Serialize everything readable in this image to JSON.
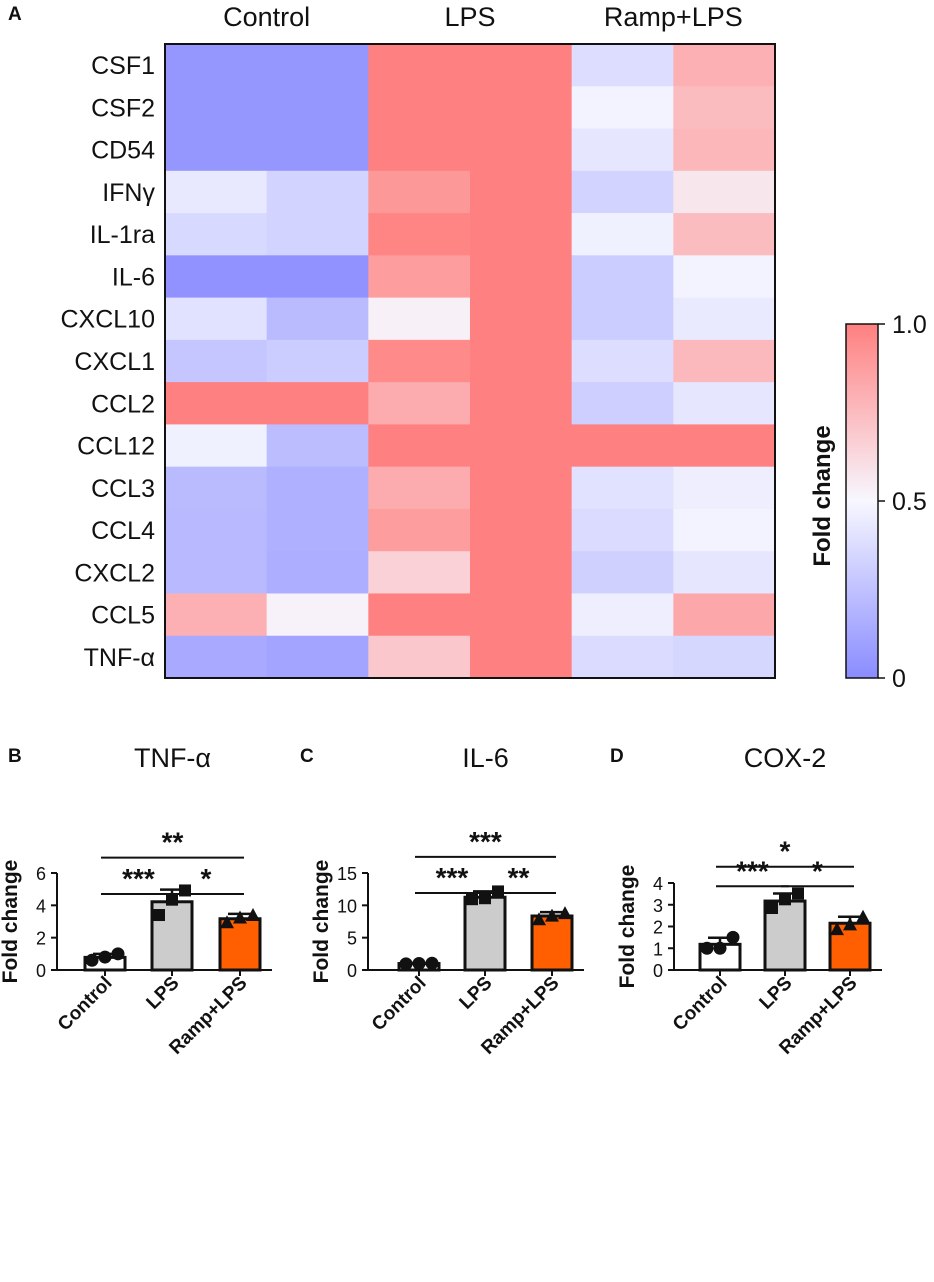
{
  "chart_data": [
    {
      "panel": "A",
      "type": "heatmap",
      "groups": [
        "Control",
        "LPS",
        "Ramp+LPS"
      ],
      "columns_per_group": 2,
      "rows": [
        "CSF1",
        "CSF2",
        "CD54",
        "IFNγ",
        "IL-1ra",
        "IL-6",
        "CXCL10",
        "CXCL1",
        "CCL2",
        "CCL12",
        "CCL3",
        "CCL4",
        "CXCL2",
        "CCL5",
        "TNF-α"
      ],
      "values": [
        [
          0.05,
          0.05,
          1.0,
          1.0,
          0.38,
          0.8
        ],
        [
          0.05,
          0.05,
          1.0,
          1.0,
          0.48,
          0.75
        ],
        [
          0.05,
          0.05,
          1.0,
          1.0,
          0.42,
          0.77
        ],
        [
          0.43,
          0.33,
          0.9,
          1.0,
          0.33,
          0.57
        ],
        [
          0.36,
          0.33,
          0.98,
          1.0,
          0.47,
          0.75
        ],
        [
          0.03,
          0.03,
          0.88,
          1.0,
          0.3,
          0.48
        ],
        [
          0.4,
          0.22,
          0.53,
          1.0,
          0.3,
          0.44
        ],
        [
          0.27,
          0.3,
          0.96,
          1.0,
          0.38,
          0.76
        ],
        [
          1.0,
          1.0,
          0.82,
          1.0,
          0.31,
          0.42
        ],
        [
          0.47,
          0.23,
          1.0,
          1.0,
          1.0,
          1.0
        ],
        [
          0.22,
          0.17,
          0.82,
          1.0,
          0.4,
          0.46
        ],
        [
          0.21,
          0.17,
          0.88,
          1.0,
          0.37,
          0.48
        ],
        [
          0.21,
          0.16,
          0.66,
          1.0,
          0.32,
          0.42
        ],
        [
          0.8,
          0.52,
          1.0,
          1.0,
          0.46,
          0.83
        ],
        [
          0.14,
          0.11,
          0.7,
          1.0,
          0.37,
          0.35
        ]
      ],
      "colorbar": {
        "title": "Fold change",
        "ticks": [
          "0",
          "0.5",
          "1.0"
        ],
        "range": [
          0,
          1
        ],
        "color_low": "#8a8cff",
        "color_mid": "#f7f7ff",
        "color_high": "#ff8080"
      }
    },
    {
      "panel": "B",
      "type": "bar",
      "title": "TNF-α",
      "ylabel": "Fold change",
      "ylim": [
        0,
        6
      ],
      "yticks": [
        "0",
        "2",
        "4",
        "6"
      ],
      "categories": [
        "Control",
        "LPS",
        "Ramp+LPS"
      ],
      "values": [
        0.78,
        4.22,
        3.17
      ],
      "errors": [
        0.22,
        0.75,
        0.3
      ],
      "points": [
        [
          0.6,
          0.8,
          1.0
        ],
        [
          3.4,
          4.35,
          4.92
        ],
        [
          2.95,
          3.25,
          3.4
        ]
      ],
      "bar_colors": [
        "#ffffff",
        "#cccccc",
        "#ff5f00"
      ],
      "markers": [
        "circle",
        "square",
        "triangle"
      ],
      "significance": [
        {
          "from": 1,
          "to": 2,
          "label": "***",
          "level": 4.7
        },
        {
          "from": 2,
          "to": 3,
          "label": "*",
          "level": 4.7
        },
        {
          "from": 1,
          "to": 3,
          "label": "**",
          "level": 6.95
        }
      ]
    },
    {
      "panel": "C",
      "type": "bar",
      "title": "IL-6",
      "ylabel": "Fold change",
      "ylim": [
        0,
        15
      ],
      "yticks": [
        "0",
        "5",
        "10",
        "15"
      ],
      "categories": [
        "Control",
        "LPS",
        "Ramp+LPS"
      ],
      "values": [
        1.0,
        11.25,
        8.35
      ],
      "errors": [
        0.08,
        0.9,
        0.6
      ],
      "points": [
        [
          0.95,
          1.0,
          1.05
        ],
        [
          10.95,
          11.1,
          12.15
        ],
        [
          7.85,
          8.4,
          8.8
        ]
      ],
      "bar_colors": [
        "#ffffff",
        "#cccccc",
        "#ff5f00"
      ],
      "markers": [
        "circle",
        "square",
        "triangle"
      ],
      "significance": [
        {
          "from": 1,
          "to": 2,
          "label": "***",
          "level": 11.9
        },
        {
          "from": 2,
          "to": 3,
          "label": "**",
          "level": 11.9
        },
        {
          "from": 1,
          "to": 3,
          "label": "***",
          "level": 17.5
        }
      ]
    },
    {
      "panel": "D",
      "type": "bar",
      "title": "COX-2",
      "ylabel": "Fold change",
      "ylim": [
        0,
        4
      ],
      "yticks": [
        "0",
        "1",
        "2",
        "3",
        "4"
      ],
      "categories": [
        "Control",
        "LPS",
        "Ramp+LPS"
      ],
      "values": [
        1.18,
        3.17,
        2.15
      ],
      "errors": [
        0.3,
        0.35,
        0.3
      ],
      "points": [
        [
          1.0,
          1.0,
          1.5
        ],
        [
          2.85,
          3.25,
          3.52
        ],
        [
          1.88,
          2.1,
          2.45
        ]
      ],
      "bar_colors": [
        "#ffffff",
        "#cccccc",
        "#ff5f00"
      ],
      "markers": [
        "circle",
        "square",
        "triangle"
      ],
      "significance": [
        {
          "from": 1,
          "to": 2,
          "label": "***",
          "level": 3.85
        },
        {
          "from": 2,
          "to": 3,
          "label": "*",
          "level": 3.85
        },
        {
          "from": 1,
          "to": 3,
          "label": "*",
          "level": 4.75
        }
      ]
    }
  ]
}
